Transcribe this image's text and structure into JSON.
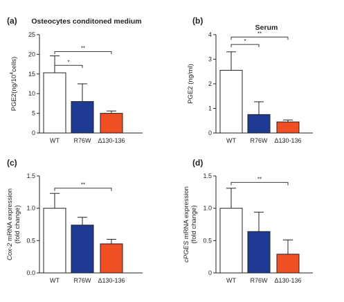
{
  "figure": {
    "colors": {
      "WT": "#ffffff",
      "R76W": "#1f3a93",
      "Δ130-136": "#f04e23",
      "stroke": "#222222"
    }
  },
  "chart_data": [
    {
      "panel": "(a)",
      "type": "bar",
      "title": "Osteocytes conditoned medium",
      "ylabel": [
        "PGE2(ng/10",
        "4",
        "cells)"
      ],
      "ylim": [
        0,
        25
      ],
      "yticks": [
        0,
        5,
        10,
        15,
        20,
        25
      ],
      "yticks_labels": [
        "0",
        "5",
        "10",
        "15",
        "20",
        "25"
      ],
      "categories": [
        "WT",
        "R76W",
        "Δ130-136"
      ],
      "values": [
        15.3,
        8.0,
        5.0
      ],
      "errors": [
        4.3,
        4.5,
        0.6
      ],
      "significance": [
        {
          "from": 0,
          "to": 1,
          "label": "*",
          "y": 17.2
        },
        {
          "from": 0,
          "to": 2,
          "label": "**",
          "y": 20.7
        }
      ]
    },
    {
      "panel": "(b)",
      "type": "bar",
      "title": "Serum",
      "ylabel": [
        "PGE2 (ng/ml)"
      ],
      "ylim": [
        0,
        4
      ],
      "yticks": [
        0,
        1,
        2,
        3,
        4
      ],
      "yticks_labels": [
        "0",
        "1",
        "2",
        "3",
        "4"
      ],
      "categories": [
        "WT",
        "R76W",
        "Δ130-136"
      ],
      "values": [
        2.55,
        0.75,
        0.45
      ],
      "errors": [
        0.75,
        0.52,
        0.08
      ],
      "significance": [
        {
          "from": 0,
          "to": 1,
          "label": "*",
          "y": 3.6
        },
        {
          "from": 0,
          "to": 2,
          "label": "**",
          "y": 3.9
        }
      ]
    },
    {
      "panel": "(c)",
      "type": "bar",
      "title": "",
      "ylabel": [
        "Cox-2",
        " mRNA expression",
        "(fold change)"
      ],
      "ylabel_italic_first": true,
      "ylim": [
        0,
        1.5
      ],
      "yticks": [
        0,
        0.5,
        1.0,
        1.5
      ],
      "yticks_labels": [
        "0.0",
        "0.5",
        "1.0",
        "1.5"
      ],
      "categories": [
        "WT",
        "R76W",
        "Δ130-136"
      ],
      "values": [
        1.0,
        0.74,
        0.45
      ],
      "errors": [
        0.23,
        0.12,
        0.07
      ],
      "significance": [
        {
          "from": 0,
          "to": 2,
          "label": "**",
          "y": 1.31
        }
      ]
    },
    {
      "panel": "(d)",
      "type": "bar",
      "title": "",
      "ylabel": [
        "cPGES",
        " mRNA expression",
        "(fold change)"
      ],
      "ylabel_italic_first": true,
      "ylim": [
        0,
        1.5
      ],
      "yticks": [
        0,
        0.5,
        1.0,
        1.5
      ],
      "yticks_labels": [
        "0",
        "0.5",
        "1.0",
        "1.5"
      ],
      "categories": [
        "WT",
        "R76W",
        "Δ130-136"
      ],
      "values": [
        1.0,
        0.64,
        0.29
      ],
      "errors": [
        0.31,
        0.3,
        0.22
      ],
      "significance": [
        {
          "from": 0,
          "to": 2,
          "label": "**",
          "y": 1.4
        }
      ]
    }
  ]
}
